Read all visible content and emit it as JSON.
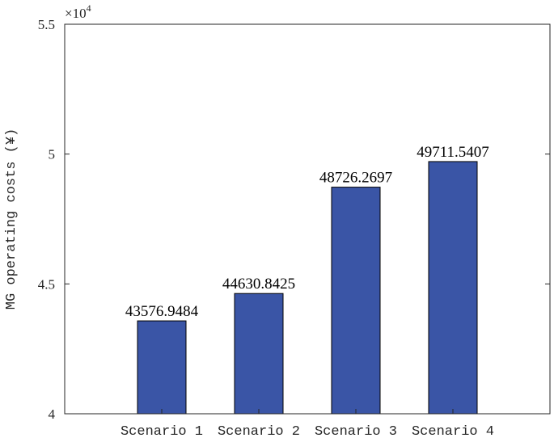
{
  "chart_data": {
    "type": "bar",
    "categories": [
      "Scenario 1",
      "Scenario 2",
      "Scenario 3",
      "Scenario 4"
    ],
    "values": [
      43576.9484,
      44630.8425,
      48726.2697,
      49711.5407
    ],
    "value_labels": [
      "43576.9484",
      "44630.8425",
      "48726.2697",
      "49711.5407"
    ],
    "title": "",
    "xlabel": "",
    "ylabel": "MG operating costs (¥)",
    "ylim": [
      40000,
      55000
    ],
    "yticks": [
      40000,
      45000,
      50000,
      55000
    ],
    "ytick_labels": [
      "4",
      "4.5",
      "5",
      "5.5"
    ],
    "y_exponent_label": "×10",
    "y_exponent_power": "4",
    "grid": false,
    "bar_color": "#3a55a6"
  }
}
